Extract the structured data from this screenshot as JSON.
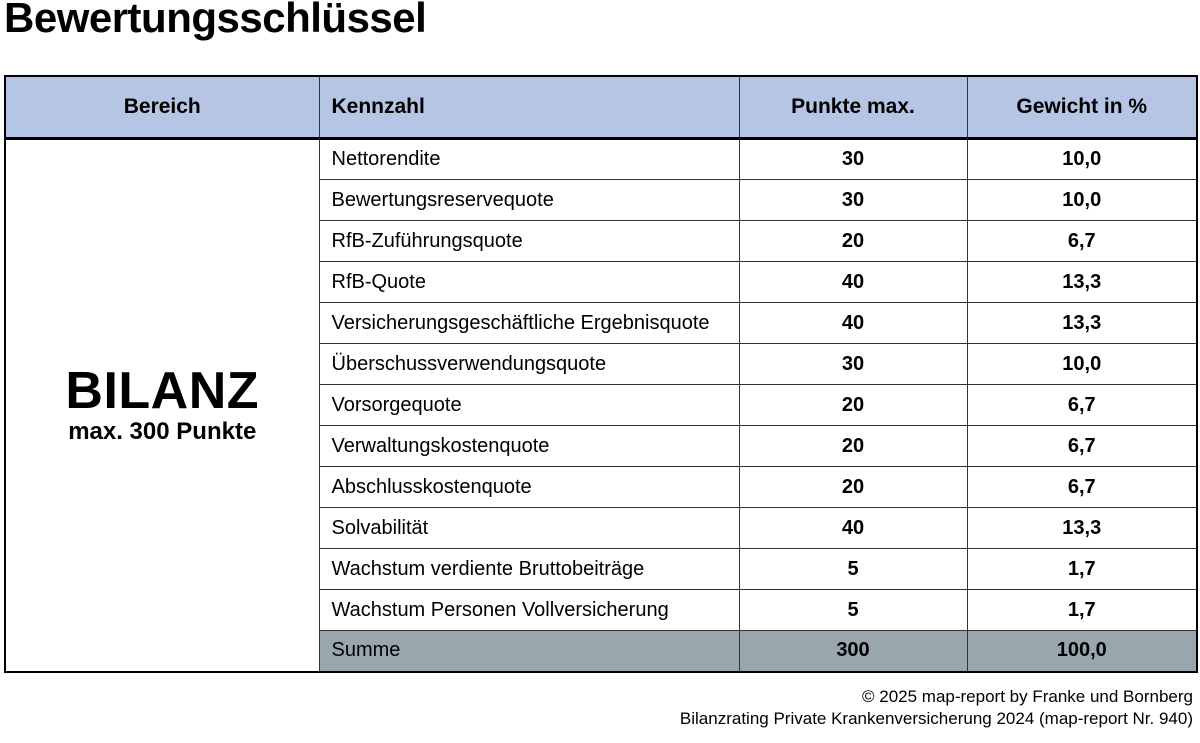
{
  "title": "Bewertungsschlüssel",
  "colors": {
    "header_bg": "#b6c5e4",
    "summe_bg": "#9aa6ae",
    "inner_border": "#333333",
    "outer_border": "#000000"
  },
  "table": {
    "headers": [
      "Bereich",
      "Kennzahl",
      "Punkte max.",
      "Gewicht in %"
    ],
    "bereich": {
      "title": "BILANZ",
      "subtitle": "max. 300 Punkte"
    },
    "rows": [
      {
        "kennzahl": "Nettorendite",
        "punkte": "30",
        "gewicht": "10,0"
      },
      {
        "kennzahl": "Bewertungsreservequote",
        "punkte": "30",
        "gewicht": "10,0"
      },
      {
        "kennzahl": "RfB-Zuführungsquote",
        "punkte": "20",
        "gewicht": "6,7"
      },
      {
        "kennzahl": "RfB-Quote",
        "punkte": "40",
        "gewicht": "13,3"
      },
      {
        "kennzahl": "Versicherungsgeschäftliche Ergebnisquote",
        "punkte": "40",
        "gewicht": "13,3"
      },
      {
        "kennzahl": "Überschussverwendungsquote",
        "punkte": "30",
        "gewicht": "10,0"
      },
      {
        "kennzahl": "Vorsorgequote",
        "punkte": "20",
        "gewicht": "6,7"
      },
      {
        "kennzahl": "Verwaltungskostenquote",
        "punkte": "20",
        "gewicht": "6,7"
      },
      {
        "kennzahl": "Abschlusskostenquote",
        "punkte": "20",
        "gewicht": "6,7"
      },
      {
        "kennzahl": "Solvabilität",
        "punkte": "40",
        "gewicht": "13,3"
      },
      {
        "kennzahl": "Wachstum verdiente Bruttobeiträge",
        "punkte": "5",
        "gewicht": "1,7"
      },
      {
        "kennzahl": "Wachstum Personen Vollversicherung",
        "punkte": "5",
        "gewicht": "1,7"
      }
    ],
    "summe": {
      "kennzahl": "Summe",
      "punkte": "300",
      "gewicht": "100,0"
    }
  },
  "footer": {
    "line1": "© 2025 map-report by Franke und Bornberg",
    "line2": "Bilanzrating Private Krankenversicherung 2024 (map-report Nr. 940)"
  }
}
